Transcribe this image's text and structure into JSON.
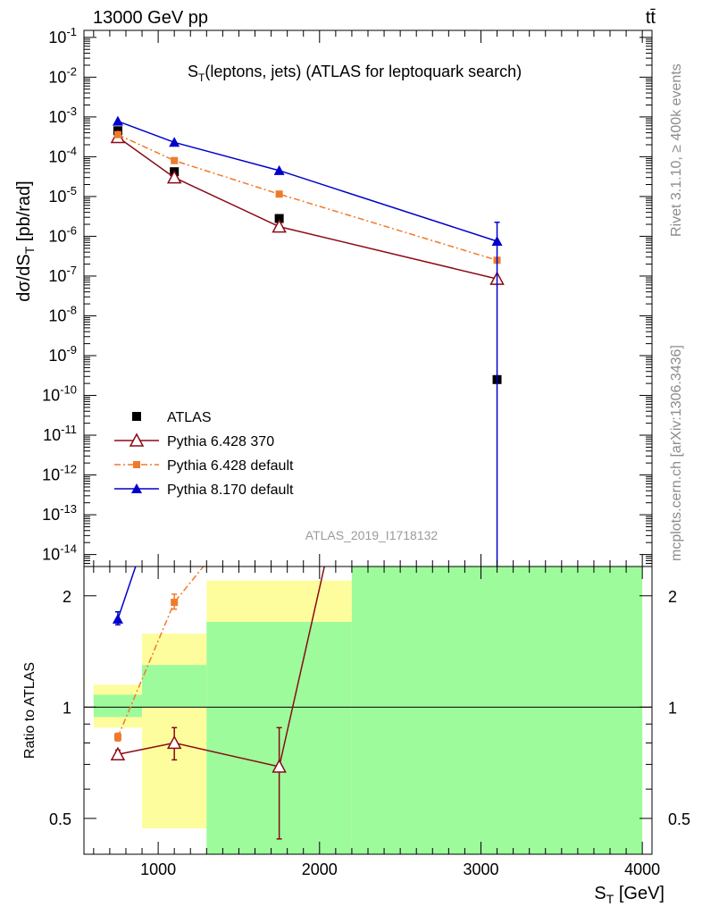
{
  "header": {
    "left": "13000 GeV pp",
    "right": "tt̄"
  },
  "side_texts": {
    "rivet": "Rivet 3.1.10, ≥ 400k events",
    "mcplots": "mcplots.cern.ch [arXiv:1306.3436]"
  },
  "colors": {
    "atlas": "#000000",
    "p6_370": "#8b0a14",
    "p6_default": "#f07a2b",
    "p8_default": "#0000cc",
    "band_green": "#9dfb9b",
    "band_yellow": "#fdfd9e"
  },
  "chart_data": [
    {
      "type": "scatter",
      "panel": "main",
      "title_main": "S",
      "title_sub": "T",
      "title_rest": "(leptons, jets) (ATLAS for leptoquark search)",
      "watermark": "ATLAS_2019_I1718132",
      "ylabel": {
        "a": "dσ/dS",
        "sub": "T",
        "b": " [pb/rad]"
      },
      "yscale": "log",
      "ylim": [
        5e-15,
        0.15
      ],
      "xlim": [
        540,
        4060
      ],
      "yticks": [
        {
          "v": 0.1,
          "m": "10",
          "e": "-1"
        },
        {
          "v": 0.01,
          "m": "10",
          "e": "-2"
        },
        {
          "v": 0.001,
          "m": "10",
          "e": "-3"
        },
        {
          "v": 0.0001,
          "m": "10",
          "e": "-4"
        },
        {
          "v": 1e-05,
          "m": "10",
          "e": "-5"
        },
        {
          "v": 1e-06,
          "m": "10",
          "e": "-6"
        },
        {
          "v": 1e-07,
          "m": "10",
          "e": "-7"
        },
        {
          "v": 1e-08,
          "m": "10",
          "e": "-8"
        },
        {
          "v": 1e-09,
          "m": "10",
          "e": "-9"
        },
        {
          "v": 1e-10,
          "m": "10",
          "e": "-10"
        },
        {
          "v": 1e-11,
          "m": "10",
          "e": "-11"
        },
        {
          "v": 1e-12,
          "m": "10",
          "e": "-12"
        },
        {
          "v": 1e-13,
          "m": "10",
          "e": "-13"
        },
        {
          "v": 1e-14,
          "m": "10",
          "e": "-14"
        }
      ],
      "legend": [
        "ATLAS",
        "Pythia 6.428 370",
        "Pythia 6.428 default",
        "Pythia 8.170 default"
      ],
      "series": [
        {
          "name": "ATLAS",
          "key": "atlas",
          "marker": "square",
          "x": [
            750,
            1100,
            1750,
            3100
          ],
          "y": [
            0.00045,
            4.2e-05,
            2.8e-06,
            2.5e-10
          ]
        },
        {
          "name": "Pythia 6.428 370",
          "key": "p6_370",
          "marker": "triangle-open",
          "x": [
            750,
            1100,
            1750,
            3100
          ],
          "y": [
            0.00031,
            3e-05,
            1.75e-06,
            8.5e-08
          ],
          "err_lo": [
            0,
            0,
            0,
            1e-20
          ],
          "err_hi": [
            0,
            0,
            0,
            0
          ]
        },
        {
          "name": "Pythia 6.428 default",
          "key": "p6_default",
          "marker": "square-small",
          "dashed": true,
          "x": [
            750,
            1100,
            1750,
            3100
          ],
          "y": [
            0.00036,
            8e-05,
            1.15e-05,
            2.5e-07
          ]
        },
        {
          "name": "Pythia 8.170 default",
          "key": "p8_default",
          "marker": "triangle",
          "x": [
            750,
            1100,
            1750,
            3100
          ],
          "y": [
            0.00078,
            0.00023,
            4.5e-05,
            7.5e-07
          ],
          "err_lo": [
            0,
            0,
            0,
            7.5e-07
          ],
          "err_hi": [
            0,
            0,
            0,
            1.5e-06
          ]
        }
      ]
    },
    {
      "type": "scatter",
      "panel": "ratio",
      "ylabel": "Ratio to ATLAS",
      "xlabel": {
        "a": "S",
        "sub": "T",
        "b": " [GeV]"
      },
      "yscale": "log",
      "ylim": [
        0.4,
        2.4
      ],
      "xlim": [
        540,
        4060
      ],
      "xticks": [
        1000,
        2000,
        3000,
        4000
      ],
      "yticks": [
        0.5,
        1,
        2
      ],
      "bands": [
        {
          "x0": 600,
          "x1": 900,
          "y_lo": 0.88,
          "y_hi": 1.15,
          "inner_lo": 0.94,
          "inner_hi": 1.08
        },
        {
          "x0": 900,
          "x1": 1300,
          "y_lo": 0.47,
          "y_hi": 1.58,
          "inner_lo": 1.0,
          "inner_hi": 1.3
        },
        {
          "x0": 1300,
          "x1": 2200,
          "y_lo": 0.4,
          "y_hi": 2.2,
          "inner_lo": 0.4,
          "inner_hi": 1.7
        },
        {
          "x0": 2200,
          "x1": 4000,
          "y_lo": 0.4,
          "y_hi": 2.4,
          "inner_lo": 0.4,
          "inner_hi": 2.4
        }
      ],
      "series": [
        {
          "name": "Pythia 6.428 370",
          "key": "p6_370",
          "marker": "triangle-open",
          "x": [
            750,
            1100,
            1750,
            2030
          ],
          "y": [
            0.745,
            0.8,
            0.69,
            2.4
          ],
          "err_lo": [
            0.02,
            0.08,
            0.25,
            0
          ],
          "err_hi": [
            0.02,
            0.08,
            0.19,
            0
          ],
          "last_is_exit": true
        },
        {
          "name": "Pythia 6.428 default",
          "key": "p6_default",
          "marker": "square-small",
          "dashed": true,
          "x": [
            750,
            1100,
            1280
          ],
          "y": [
            0.83,
            1.92,
            2.4
          ],
          "err_lo": [
            0.02,
            0.08,
            0
          ],
          "err_hi": [
            0.02,
            0.1,
            0
          ],
          "last_is_exit": true
        },
        {
          "name": "Pythia 8.170 default",
          "key": "p8_default",
          "marker": "triangle",
          "x": [
            750,
            860
          ],
          "y": [
            1.73,
            2.4
          ],
          "err_lo": [
            0.06,
            0
          ],
          "err_hi": [
            0.08,
            0
          ],
          "last_is_exit": true
        }
      ]
    }
  ]
}
